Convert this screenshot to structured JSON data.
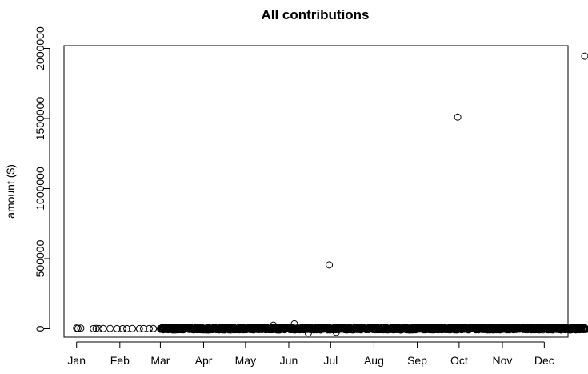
{
  "chart_data": {
    "type": "scatter",
    "title": "All contributions",
    "xlabel": "",
    "ylabel": "amount ($)",
    "x_ticks": [
      "Jan",
      "Feb",
      "Mar",
      "Apr",
      "May",
      "Jun",
      "Jul",
      "Aug",
      "Sep",
      "Oct",
      "Nov",
      "Dec"
    ],
    "y_ticks": [
      0,
      500000,
      1000000,
      1500000,
      2000000
    ],
    "y_tick_labels": [
      "0",
      "500000",
      "1000000",
      "1500000",
      "2000000"
    ],
    "xlim": [
      "2011-12-23",
      "2012-12-18"
    ],
    "ylim": [
      -60000,
      2020000
    ],
    "marker": "open-circle",
    "grid": false,
    "legend": "none",
    "outliers": [
      {
        "x": "2012-06-30",
        "y": 455000
      },
      {
        "x": "2012-09-30",
        "y": 1510000
      },
      {
        "x": "2012-12-30",
        "y": 1945000
      },
      {
        "x": "2012-05-21",
        "y": 25000
      },
      {
        "x": "2012-06-05",
        "y": 35000
      },
      {
        "x": "2012-06-15",
        "y": -30000
      },
      {
        "x": "2012-07-05",
        "y": -25000
      }
    ],
    "near_zero_points": [
      {
        "x": "2012-01-01",
        "y": 5000
      },
      {
        "x": "2012-01-02",
        "y": 3000
      },
      {
        "x": "2012-01-04",
        "y": 4000
      },
      {
        "x": "2012-01-13",
        "y": 1000
      },
      {
        "x": "2012-01-15",
        "y": 2000
      },
      {
        "x": "2012-01-17",
        "y": 500
      },
      {
        "x": "2012-01-20",
        "y": 1500
      },
      {
        "x": "2012-01-25",
        "y": 2000
      },
      {
        "x": "2012-01-30",
        "y": 1000
      },
      {
        "x": "2012-02-03",
        "y": 500
      },
      {
        "x": "2012-02-06",
        "y": 1000
      },
      {
        "x": "2012-02-10",
        "y": 1500
      },
      {
        "x": "2012-02-15",
        "y": 500
      },
      {
        "x": "2012-02-18",
        "y": 1000
      },
      {
        "x": "2012-02-22",
        "y": 800
      },
      {
        "x": "2012-02-25",
        "y": 1200
      }
    ],
    "dense_range": {
      "from": "2012-03-01",
      "to": "2012-12-31",
      "y_min": -8000,
      "y_max": 10000
    }
  }
}
